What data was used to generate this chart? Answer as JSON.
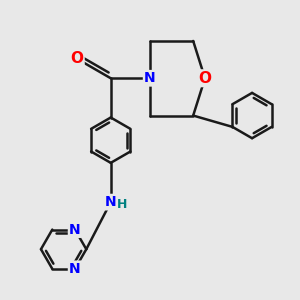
{
  "background_color": "#e8e8e8",
  "bond_color": "#1a1a1a",
  "nitrogen_color": "#0000ff",
  "oxygen_color": "#ff0000",
  "nh_color": "#008080",
  "bond_width": 1.8,
  "font_size_atoms": 10,
  "fig_size": [
    3.0,
    3.0
  ],
  "dpi": 100,
  "xlim": [
    -2.5,
    4.5
  ],
  "ylim": [
    -4.0,
    3.5
  ]
}
